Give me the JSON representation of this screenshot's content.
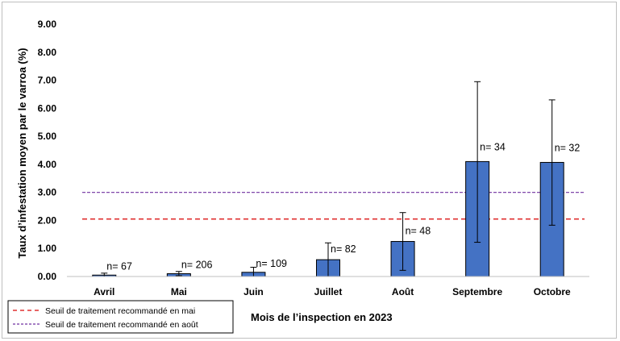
{
  "chart_data": {
    "type": "bar",
    "xlabel": "Mois de l’inspection en 2023",
    "ylabel": "Taux d’infestation moyen par le varroa (%)",
    "ylim": [
      0,
      9
    ],
    "yticks": [
      "0.00",
      "1.00",
      "2.00",
      "3.00",
      "4.00",
      "5.00",
      "6.00",
      "7.00",
      "8.00",
      "9.00"
    ],
    "categories": [
      "Avril",
      "Mai",
      "Juin",
      "Juillet",
      "Août",
      "Septembre",
      "Octobre"
    ],
    "values": [
      0.05,
      0.1,
      0.15,
      0.6,
      1.25,
      4.1,
      4.07
    ],
    "error_low": [
      0.0,
      0.03,
      0.0,
      0.0,
      0.22,
      1.22,
      1.83
    ],
    "error_high": [
      0.12,
      0.18,
      0.33,
      1.2,
      2.28,
      6.95,
      6.3
    ],
    "data_labels": [
      "n= 67",
      "n= 206",
      "n= 109",
      "n= 82",
      "n= 48",
      "n= 34",
      "n= 32"
    ],
    "bar_color": "#4472c4",
    "grid": false,
    "reference_lines": [
      {
        "name": "Seuil de traitement recommandé en mai",
        "value": 2.05,
        "color": "#e03030",
        "style": "dashed"
      },
      {
        "name": "Seuil de traitement recommandé en août",
        "value": 3.0,
        "color": "#7030a0",
        "style": "dashed"
      }
    ],
    "legend_position": "bottom-left"
  }
}
